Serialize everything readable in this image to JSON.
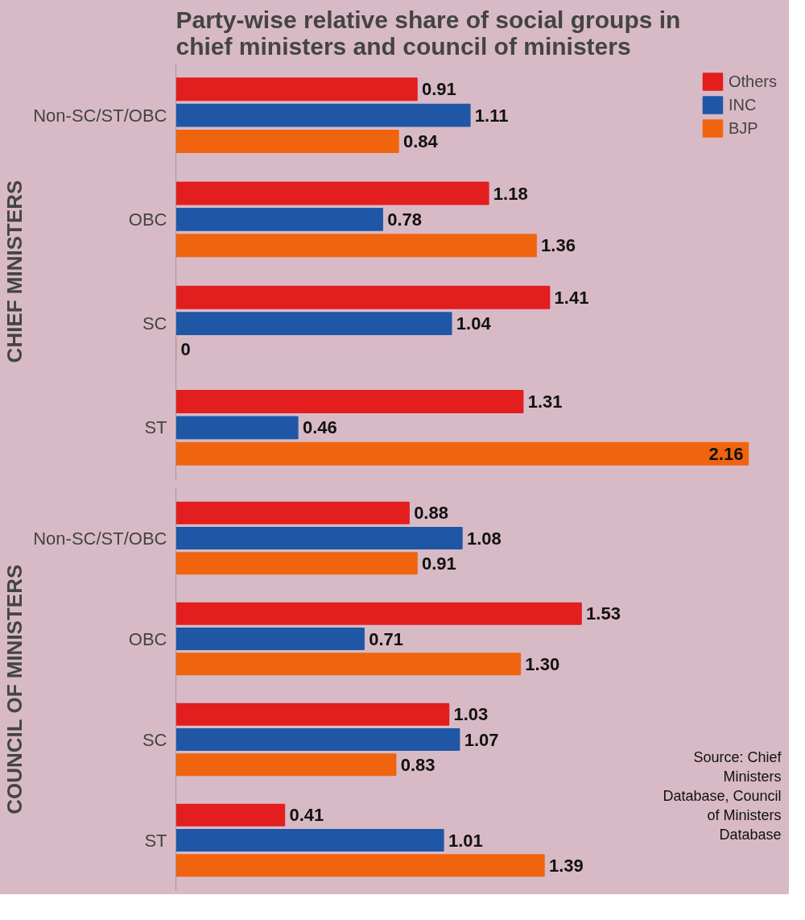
{
  "chart_data": [
    {
      "type": "bar",
      "orientation": "horizontal",
      "title": "Party-wise relative share of social groups in chief ministers and council of ministers",
      "ylabel": "CHIEF MINISTERS",
      "categories": [
        "Non-SC/ST/OBC",
        "OBC",
        "SC",
        "ST"
      ],
      "xlim": [
        0,
        2.3
      ],
      "tick_labels": "y",
      "legend": "top right",
      "series": [
        {
          "name": "Others",
          "color": "#e31e1e",
          "values": [
            0.91,
            1.18,
            1.41,
            1.31
          ],
          "value_labels": [
            "0.91",
            "1.18",
            "1.41",
            "1.31"
          ]
        },
        {
          "name": "INC",
          "color": "#1f57a6",
          "values": [
            1.11,
            0.78,
            1.04,
            0.46
          ],
          "value_labels": [
            "1.11",
            "0.78",
            "1.04",
            "0.46"
          ]
        },
        {
          "name": "BJP",
          "color": "#f0640f",
          "values": [
            0.84,
            1.36,
            0,
            2.16
          ],
          "value_labels": [
            "0.84",
            "1.36",
            "0",
            "2.16"
          ]
        }
      ]
    },
    {
      "type": "bar",
      "orientation": "horizontal",
      "ylabel": "COUNCIL OF MINISTERS",
      "categories": [
        "Non-SC/ST/OBC",
        "OBC",
        "SC",
        "ST"
      ],
      "xlim": [
        0,
        2.3
      ],
      "tick_labels": "y",
      "annotations": [
        "Source: Chief Ministers Database, Council of Ministers Database"
      ],
      "series": [
        {
          "color": "#e31e1e",
          "values": [
            0.88,
            1.53,
            1.03,
            0.41
          ],
          "value_labels": [
            "0.88",
            "1.53",
            "1.03",
            "0.41"
          ]
        },
        {
          "color": "#1f57a6",
          "values": [
            1.08,
            0.71,
            1.07,
            1.01
          ],
          "value_labels": [
            "1.08",
            "0.71",
            "1.07",
            "1.01"
          ]
        },
        {
          "color": "#f0640f",
          "values": [
            0.91,
            1.3,
            0.83,
            1.39
          ],
          "value_labels": [
            "0.91",
            "1.30",
            "0.83",
            "1.39"
          ]
        }
      ]
    }
  ]
}
